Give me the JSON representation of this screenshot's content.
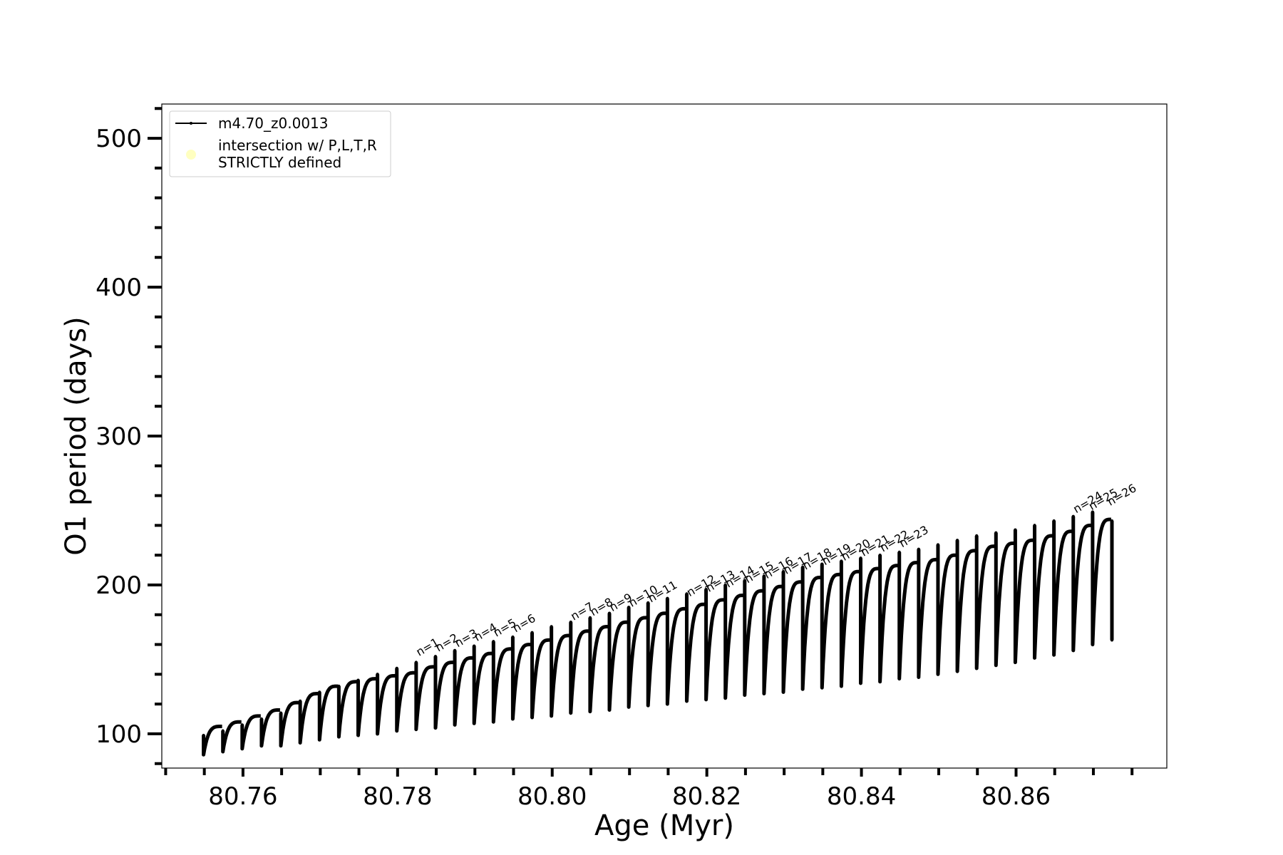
{
  "chart_data": {
    "type": "line",
    "title": "",
    "xlabel": "Age (Myr)",
    "ylabel": "O1 period (days)",
    "xlim": [
      80.7495,
      80.8795
    ],
    "ylim": [
      77,
      523
    ],
    "x_ticks": [
      80.76,
      80.78,
      80.8,
      80.82,
      80.84,
      80.86
    ],
    "x_tick_labels": [
      "80.76",
      "80.78",
      "80.80",
      "80.82",
      "80.84",
      "80.86"
    ],
    "x_minor_ticks": [
      80.75,
      80.755,
      80.765,
      80.77,
      80.775,
      80.785,
      80.79,
      80.795,
      80.805,
      80.81,
      80.815,
      80.825,
      80.83,
      80.835,
      80.845,
      80.85,
      80.855,
      80.865,
      80.87,
      80.875
    ],
    "y_ticks": [
      100,
      200,
      300,
      400,
      500
    ],
    "y_tick_labels": [
      "100",
      "200",
      "300",
      "400",
      "500"
    ],
    "y_minor_step": 20,
    "grid": false,
    "legend": {
      "placement": "upper-left",
      "entries": [
        {
          "label": "m4.70_z0.0013",
          "marker": "line-with-dots",
          "color": "#000000"
        },
        {
          "label_lines": [
            "intersection w/ P,L,T,R",
            "STRICTLY defined"
          ],
          "marker": "circle",
          "color": "#ffffc0"
        }
      ]
    },
    "series": [
      {
        "name": "m4.70_z0.0013",
        "color": "#000000",
        "pulse_cycles": {
          "start_age": [
            80.7549,
            80.7574,
            80.7599,
            80.7624,
            80.7649,
            80.7674,
            80.7699,
            80.7724,
            80.7749,
            80.7774,
            80.7799,
            80.7824,
            80.7849,
            80.7874,
            80.7899,
            80.7924,
            80.7949,
            80.7974,
            80.7999,
            80.8024,
            80.8049,
            80.8074,
            80.8099,
            80.8124,
            80.8149,
            80.8174,
            80.8199,
            80.8224,
            80.8249,
            80.8274,
            80.8299,
            80.8324,
            80.8349,
            80.8374,
            80.8399,
            80.8424,
            80.8449,
            80.8474,
            80.8499,
            80.8524,
            80.8549,
            80.8574,
            80.8599,
            80.8624,
            80.8649,
            80.8674,
            80.8699,
            80.8724
          ],
          "min_period": [
            86,
            88,
            90,
            92,
            92,
            94,
            96,
            98,
            99,
            100,
            102,
            103,
            104,
            106,
            107,
            108,
            110,
            111,
            112,
            114,
            115,
            116,
            118,
            119,
            120,
            122,
            123,
            124,
            126,
            127,
            128,
            130,
            131,
            132,
            134,
            135,
            137,
            138,
            140,
            142,
            144,
            146,
            148,
            151,
            153,
            156,
            160,
            163
          ],
          "peak_period": [
            105,
            108,
            112,
            116,
            121,
            127,
            132,
            135,
            137,
            139,
            141,
            145,
            148,
            151,
            154,
            157,
            160,
            163,
            166,
            169,
            172,
            175,
            178,
            181,
            184,
            187,
            190,
            193,
            196,
            199,
            202,
            205,
            207,
            209,
            211,
            213,
            215,
            217,
            220,
            223,
            226,
            228,
            230,
            233,
            236,
            240,
            244,
            248
          ],
          "spike_period": [
            99,
            102,
            106,
            110,
            114,
            122,
            128,
            132,
            136,
            140,
            144,
            148,
            152,
            156,
            159,
            162,
            165,
            168,
            172,
            175,
            178,
            181,
            185,
            188,
            191,
            194,
            197,
            200,
            203,
            206,
            209,
            212,
            214,
            216,
            218,
            220,
            222,
            224,
            227,
            230,
            233,
            235,
            237,
            240,
            243,
            246,
            249,
            243
          ]
        }
      }
    ],
    "annotations": {
      "cycle_labels": [
        "n=1",
        "n=2",
        "n=3",
        "n=4",
        "n=5",
        "n=6",
        "n=7",
        "n=8",
        "n=9",
        "n=10",
        "n=11",
        "n=12",
        "n=13",
        "n=14",
        "n=15",
        "n=16",
        "n=17",
        "n=18",
        "n=19",
        "n=20",
        "n=21",
        "n=22",
        "n=23",
        "n=24",
        "n=25",
        "n=26"
      ],
      "cycle_label_x": [
        80.7824,
        80.7849,
        80.7874,
        80.7899,
        80.7924,
        80.7949,
        80.8024,
        80.8049,
        80.8074,
        80.8099,
        80.8124,
        80.8174,
        80.8199,
        80.8224,
        80.8249,
        80.8274,
        80.8299,
        80.8324,
        80.8349,
        80.8374,
        80.8399,
        80.8424,
        80.8449,
        80.8674,
        80.8694,
        80.8718
      ],
      "cycle_label_y": [
        152,
        155,
        158,
        162,
        165,
        168,
        176,
        179,
        182,
        185,
        188,
        192,
        195,
        198,
        201,
        204,
        207,
        210,
        213,
        216,
        219,
        222,
        225,
        248,
        250,
        253
      ]
    }
  }
}
